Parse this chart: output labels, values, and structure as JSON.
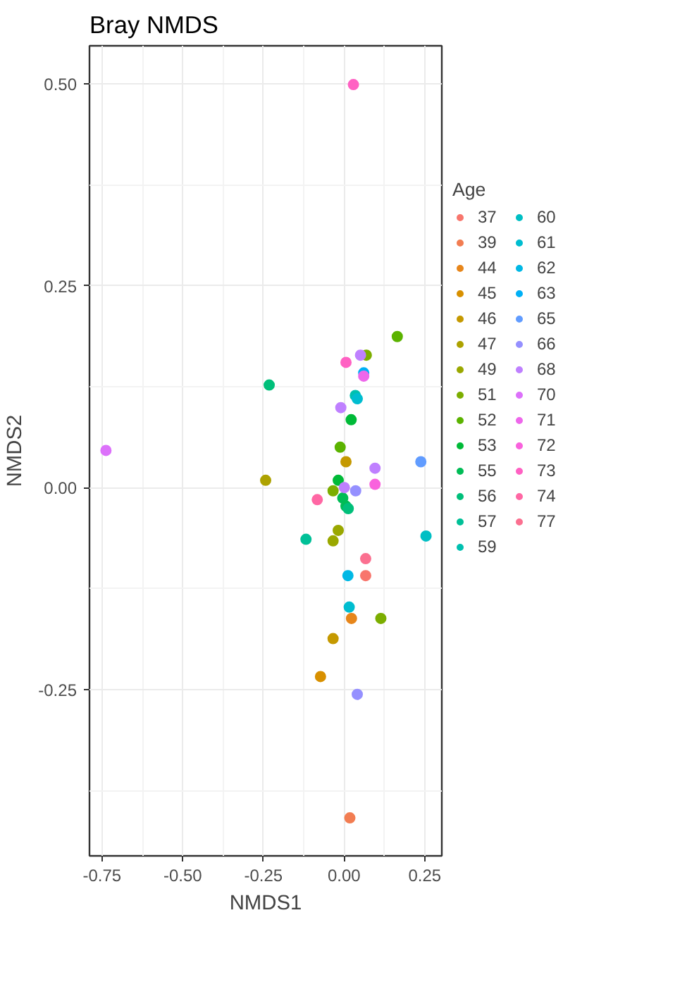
{
  "chart_data": {
    "type": "scatter",
    "title": "Bray NMDS",
    "xlabel": "NMDS1",
    "ylabel": "NMDS2",
    "legend_title": "Age",
    "xlim": [
      -0.789,
      0.303
    ],
    "ylim": [
      -0.456,
      0.547
    ],
    "xticks": [
      {
        "value": -0.75,
        "label": "-0.75"
      },
      {
        "value": -0.5,
        "label": "-0.50"
      },
      {
        "value": -0.25,
        "label": "-0.25"
      },
      {
        "value": 0,
        "label": "0.00"
      },
      {
        "value": 0.25,
        "label": "0.25"
      }
    ],
    "yticks": [
      {
        "value": -0.25,
        "label": "-0.25"
      },
      {
        "value": 0,
        "label": "0.00"
      },
      {
        "value": 0.25,
        "label": "0.25"
      },
      {
        "value": 0.5,
        "label": "0.50"
      }
    ],
    "grid": true,
    "legend": "right",
    "marker": "circle",
    "series": [
      {
        "name": "37",
        "color": "#f8766d",
        "x": [
          0.067
        ],
        "values": [
          -0.109
        ]
      },
      {
        "name": "39",
        "color": "#f27d52",
        "x": [
          0.018
        ],
        "values": [
          -0.409
        ]
      },
      {
        "name": "44",
        "color": "#e7861b",
        "x": [
          0.023
        ],
        "values": [
          -0.162
        ]
      },
      {
        "name": "45",
        "color": "#d89000",
        "x": [
          -0.073
        ],
        "values": [
          -0.234
        ]
      },
      {
        "name": "46",
        "color": "#c59900",
        "x": [
          -0.034,
          0.006
        ],
        "values": [
          -0.187,
          0.032
        ]
      },
      {
        "name": "47",
        "color": "#ada200",
        "x": [
          -0.243
        ],
        "values": [
          0.009
        ]
      },
      {
        "name": "49",
        "color": "#9aa800",
        "x": [
          -0.034,
          -0.018
        ],
        "values": [
          -0.066,
          -0.053
        ]
      },
      {
        "name": "51",
        "color": "#7cae00",
        "x": [
          0.114,
          0.069,
          -0.034
        ],
        "values": [
          -0.162,
          0.164,
          -0.004
        ]
      },
      {
        "name": "52",
        "color": "#5bb300",
        "x": [
          0.165,
          -0.012
        ],
        "values": [
          0.187,
          0.05
        ]
      },
      {
        "name": "53",
        "color": "#00ba38",
        "x": [
          0.022,
          -0.018
        ],
        "values": [
          0.084,
          0.009
        ]
      },
      {
        "name": "55",
        "color": "#00bc56",
        "x": [
          -0.004,
          0.006
        ],
        "values": [
          -0.013,
          -0.023
        ]
      },
      {
        "name": "56",
        "color": "#00bf7a",
        "x": [
          -0.232,
          0.013
        ],
        "values": [
          0.127,
          -0.026
        ]
      },
      {
        "name": "57",
        "color": "#00c097",
        "x": [
          -0.118
        ],
        "values": [
          -0.064
        ]
      },
      {
        "name": "59",
        "color": "#00c0b0",
        "x": [
          0.035
        ],
        "values": [
          0.114
        ]
      },
      {
        "name": "60",
        "color": "#00bfc4",
        "x": [
          0.254
        ],
        "values": [
          -0.06
        ]
      },
      {
        "name": "61",
        "color": "#00bdd0",
        "x": [
          0.041,
          0.016
        ],
        "values": [
          0.11,
          -0.148
        ]
      },
      {
        "name": "62",
        "color": "#00b8e5",
        "x": [
          0.012
        ],
        "values": [
          -0.109
        ]
      },
      {
        "name": "63",
        "color": "#00b0f6",
        "x": [
          0.061
        ],
        "values": [
          0.142
        ]
      },
      {
        "name": "65",
        "color": "#619cff",
        "x": [
          0.238
        ],
        "values": [
          0.032
        ]
      },
      {
        "name": "66",
        "color": "#9590ff",
        "x": [
          0.041,
          0.036
        ],
        "values": [
          -0.256,
          -0.004
        ]
      },
      {
        "name": "68",
        "color": "#bf80ff",
        "x": [
          0.096,
          0.051,
          0.001,
          -0.01
        ],
        "values": [
          0.024,
          0.164,
          0.0,
          0.099
        ]
      },
      {
        "name": "70",
        "color": "#dc71fa",
        "x": [
          -0.738
        ],
        "values": [
          0.046
        ]
      },
      {
        "name": "71",
        "color": "#ee67eb",
        "x": [
          0.061
        ],
        "values": [
          0.138
        ]
      },
      {
        "name": "72",
        "color": "#f962dd",
        "x": [
          0.096
        ],
        "values": [
          0.004
        ]
      },
      {
        "name": "73",
        "color": "#ff61c3",
        "x": [
          0.006,
          0.029
        ],
        "values": [
          0.155,
          0.499
        ]
      },
      {
        "name": "74",
        "color": "#ff67a4",
        "x": [
          -0.083
        ],
        "values": [
          -0.015
        ]
      },
      {
        "name": "77",
        "color": "#fb7090",
        "x": [
          0.067
        ],
        "values": [
          -0.088
        ]
      }
    ]
  }
}
